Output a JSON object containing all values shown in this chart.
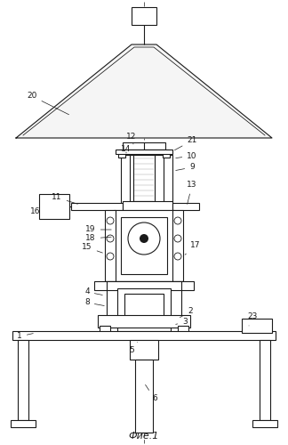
{
  "title": "Фие.1",
  "bg_color": "#ffffff",
  "line_color": "#1a1a1a",
  "fig_width": 3.24,
  "fig_height": 5.0,
  "dpi": 100
}
